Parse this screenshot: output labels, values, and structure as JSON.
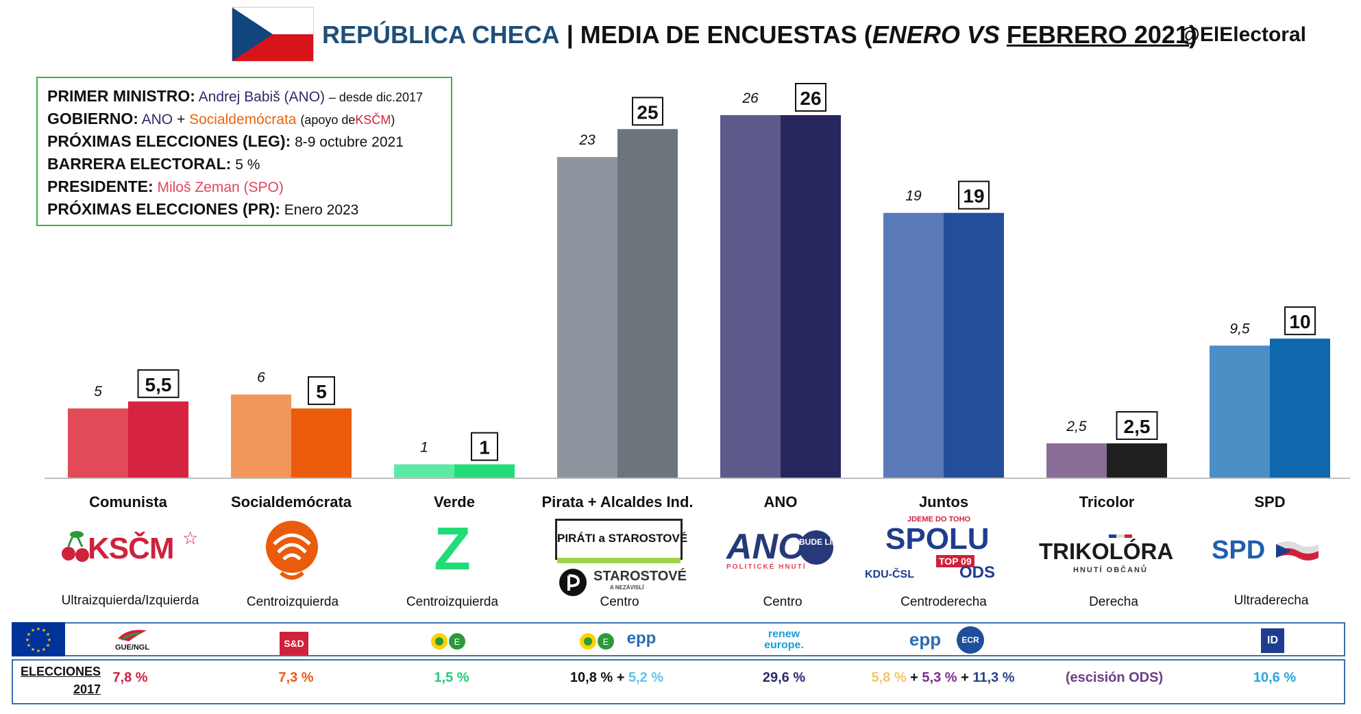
{
  "header": {
    "country": "REPÚBLICA CHECA",
    "separator": "|",
    "title_prefix": "MEDIA DE ENCUESTAS (",
    "title_jan": "ENERO",
    "title_vs": " VS ",
    "title_feb": "FEBRERO 2021",
    "title_suffix": ")",
    "handle": "@ElElectoral"
  },
  "info": {
    "pm_label": "PRIMER MINISTRO:",
    "pm_value": "Andrej Babiš (ANO)",
    "pm_since": "– desde dic.2017",
    "gov_label": "GOBIERNO:",
    "gov_ano": "ANO",
    "gov_plus": "+",
    "gov_soc": "Socialdemócrata",
    "gov_support": "(apoyo de",
    "gov_kscm": "KSČM",
    "gov_close": ")",
    "leg_label": "PRÓXIMAS ELECCIONES (LEG):",
    "leg_value": "8-9 octubre 2021",
    "bar_label": "BARRERA ELECTORAL:",
    "bar_value": "5 %",
    "pres_label": "PRESIDENTE:",
    "pres_value": "Miloš Zeman (SPO)",
    "pr_label": "PRÓXIMAS ELECCIONES (PR):",
    "pr_value": "Enero 2023"
  },
  "chart_data": {
    "type": "bar",
    "categories": [
      "Comunista",
      "Socialdemócrata",
      "Verde",
      "Pirata + Alcaldes Ind.",
      "ANO",
      "Juntos",
      "Tricolor",
      "SPD"
    ],
    "series": [
      {
        "values": [
          5,
          6,
          1,
          23,
          26,
          19,
          2.5,
          9.5
        ],
        "labels": [
          "5",
          "6",
          "1",
          "23",
          "26",
          "19",
          "2,5",
          "9,5"
        ],
        "colors": [
          "#e34a57",
          "#f2975c",
          "#5ee8a6",
          "#8d969e",
          "#5c5a8a",
          "#5a79b8",
          "#8a6d96",
          "#4b8fc6"
        ]
      },
      {
        "values": [
          5.5,
          5,
          1,
          25,
          26,
          19,
          2.5,
          10
        ],
        "labels": [
          "5,5",
          "5",
          "1",
          "25",
          "26",
          "19",
          "2,5",
          "10"
        ],
        "colors": [
          "#d6233f",
          "#ea5b0c",
          "#22dd77",
          "#6c757c",
          "#28265e",
          "#234e9b",
          "#221f20",
          "#0f67ad"
        ]
      }
    ],
    "ylim": [
      0,
      26
    ]
  },
  "parties": [
    {
      "logo": "KSČM",
      "logo_color": "#d0213c",
      "ideology": "Ultraizquierda/Izquierda"
    },
    {
      "logo": "ČSSD",
      "logo_color": "#ea5b0c",
      "ideology": "Centroizquierda"
    },
    {
      "logo": "Z",
      "logo_color": "#22dd77",
      "ideology": "Centroizquierda"
    },
    {
      "logo": "PIRÁTI a STAROSTOVÉ",
      "logo2": "STAROSTOVÉ",
      "logo2_sub": "A NEZÁVISLÍ",
      "logo_color": "#111111",
      "ideology": "Centro"
    },
    {
      "logo": "ANO",
      "logo_badge": "BUDE LÍP",
      "logo_sub": "POLITICKÉ HNUTÍ",
      "logo_color": "#26397a",
      "ideology": "Centro"
    },
    {
      "logo_top": "JDEME DO TOHO",
      "logo": "SPOLU",
      "logo_parts": [
        "KDU-ČSL",
        "TOP 09",
        "ODS"
      ],
      "logo_color": "#1f3d8f",
      "ideology": "Centroderecha"
    },
    {
      "logo": "TRIKOLÓRA",
      "logo_sub": "HNUTÍ OBČANŮ",
      "logo_color": "#1a1a1a",
      "ideology": "Derecha"
    },
    {
      "logo": "SPD",
      "logo_color": "#1f5fae",
      "ideology": "Ultraderecha"
    }
  ],
  "eu_groups": {
    "gue": "GUE/NGL",
    "sd": "S&D",
    "greens_verde": "Greens/EFA",
    "pirate": "Greens/EFA + epp",
    "epp": "epp",
    "renew_1": "renew",
    "renew_2": "europe.",
    "epp_ecr": "epp",
    "ecr": "ECR",
    "id": "ID"
  },
  "elections": {
    "label_1": "ELECCIONES",
    "label_2": "2017",
    "kscm": "7,8 %",
    "cssd": "7,3 %",
    "verde": "1,5 %",
    "pir_a": "10,8 %",
    "pir_plus": " + ",
    "pir_b": "5,2 %",
    "ano": "29,6 %",
    "sp_a": "5,8 %",
    "sp_plus1": " + ",
    "sp_b": "5,3 %",
    "sp_plus2": " + ",
    "sp_c": "11,3 %",
    "tricolor": "(escisión ODS)",
    "spd": "10,6 %"
  },
  "colors": {
    "kscm": "#d0213c",
    "cssd": "#ea5b0c",
    "verde": "#22cc77",
    "pir_b": "#5ec4e8",
    "ano": "#2b2a6b",
    "sp_a": "#f4c56a",
    "sp_b": "#7a2d8f",
    "sp_c": "#2d3f8f",
    "tricolor": "#6a3d8a",
    "spd": "#2aa6e0"
  }
}
